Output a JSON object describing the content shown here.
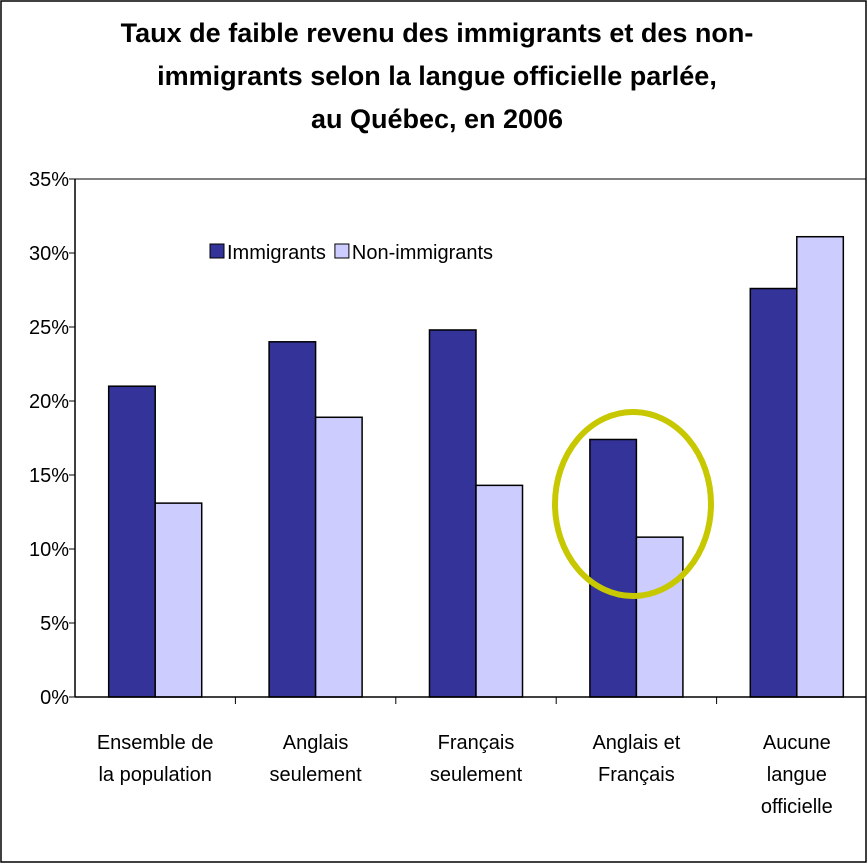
{
  "chart_data": {
    "type": "bar",
    "title": "Taux de faible revenu des immigrants et des non-\nimmigrants selon la langue officielle parlée,\nau Québec, en 2006",
    "categories": [
      "Ensemble de\nla population",
      "Anglais\nseulement",
      "Français\nseulement",
      "Anglais et\nFrançais",
      "Aucune\nlangue\nofficielle"
    ],
    "series": [
      {
        "name": "Immigrants",
        "color": "#333399",
        "values": [
          21,
          24,
          24.8,
          17.4,
          27.6
        ]
      },
      {
        "name": "Non-immigrants",
        "color": "#ccccff",
        "values": [
          13.1,
          18.9,
          14.3,
          10.8,
          31.1
        ]
      }
    ],
    "ylim": [
      0,
      35
    ],
    "yticks": [
      {
        "value": 0,
        "label": "0%"
      },
      {
        "value": 5,
        "label": "5%"
      },
      {
        "value": 10,
        "label": "10%"
      },
      {
        "value": 15,
        "label": "15%"
      },
      {
        "value": 20,
        "label": "20%"
      },
      {
        "value": 25,
        "label": "25%"
      },
      {
        "value": 30,
        "label": "30%"
      },
      {
        "value": 35,
        "label": "35%"
      }
    ],
    "grid": false
  }
}
